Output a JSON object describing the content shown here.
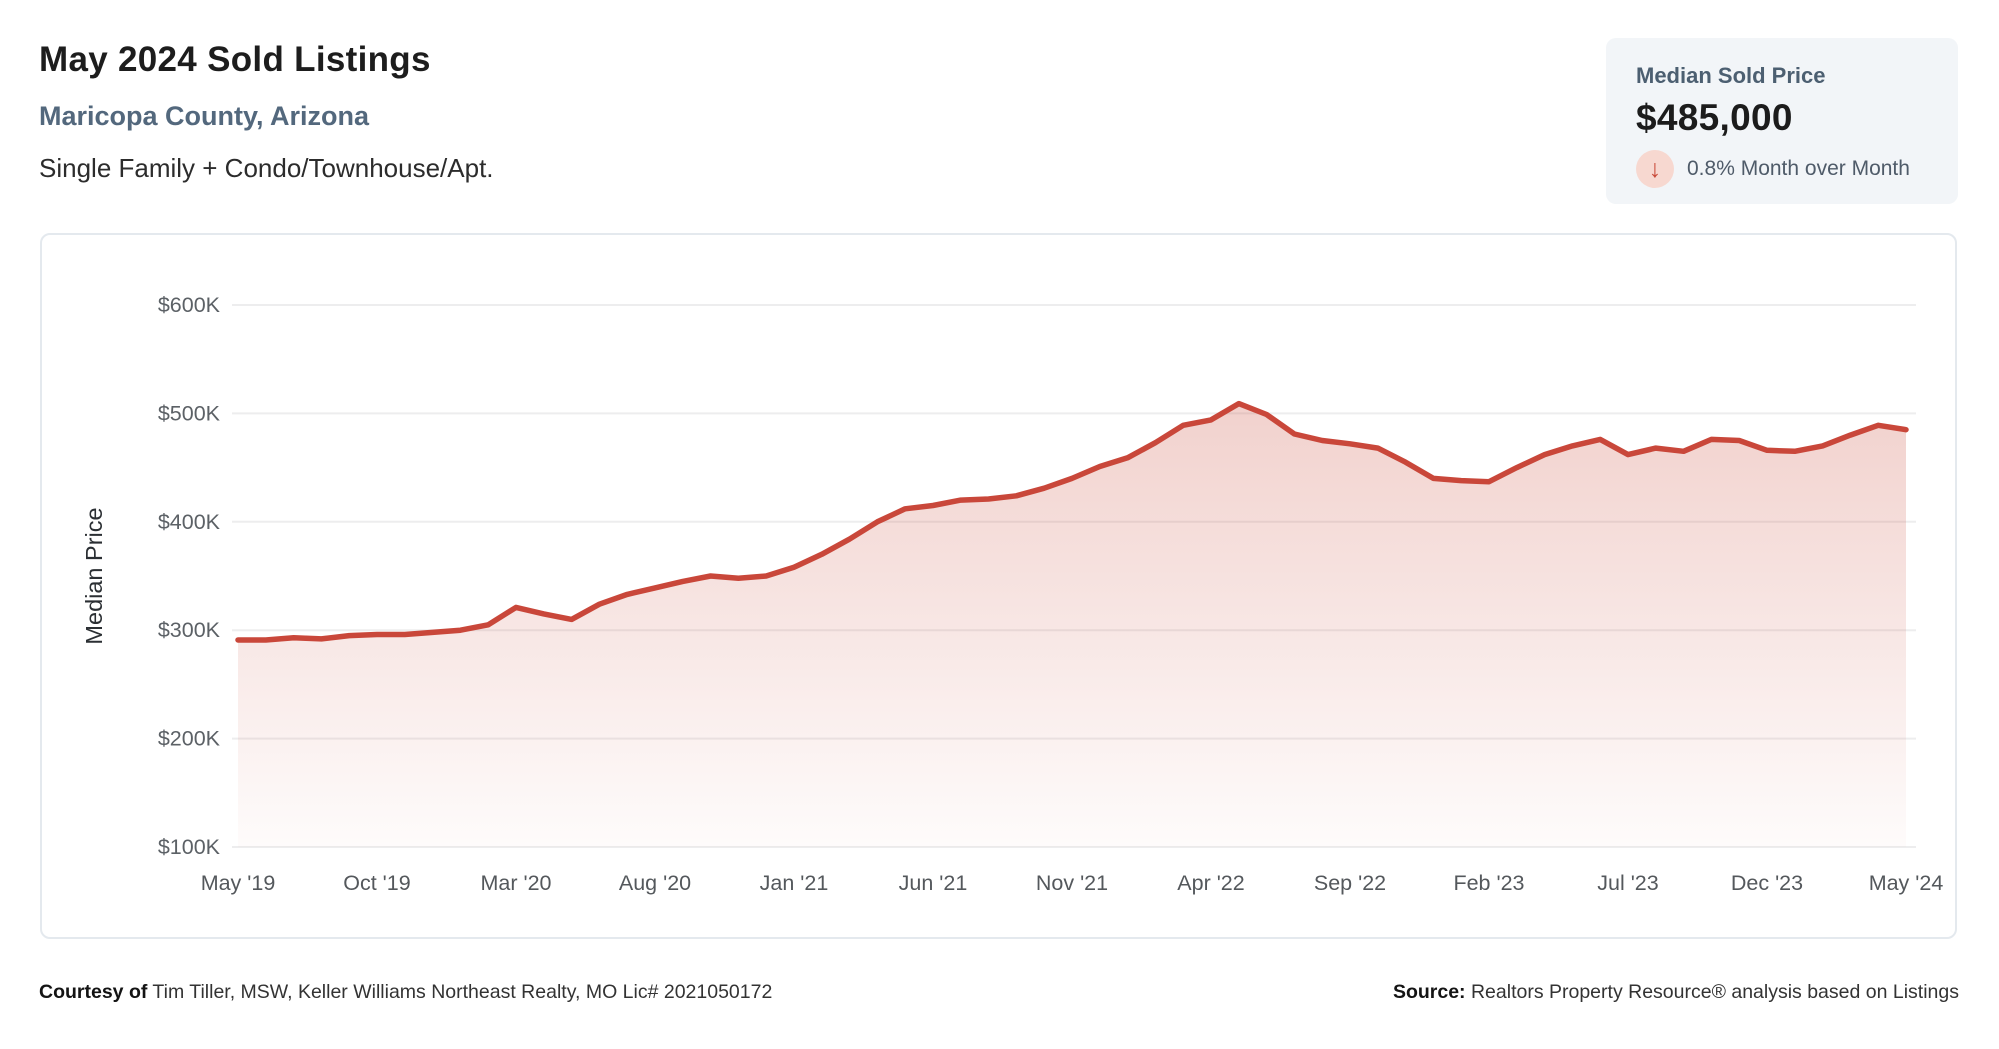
{
  "header": {
    "title": "May 2024 Sold Listings",
    "subtitle": "Maricopa County, Arizona",
    "property_types": "Single Family + Condo/Townhouse/Apt."
  },
  "stat_card": {
    "label": "Median Sold Price",
    "value": "$485,000",
    "change_text": "0.8% Month over Month",
    "change_direction": "down",
    "arrow_glyph": "↓"
  },
  "footer": {
    "courtesy_label": "Courtesy of",
    "courtesy_text": " Tim Tiller, MSW, Keller Williams Northeast Realty, MO Lic# 2021050172",
    "source_label": "Source:",
    "source_text": " Realtors Property Resource® analysis based on Listings"
  },
  "chart_data": {
    "type": "area",
    "title": "May 2024 Sold Listings — Median Sold Price",
    "xlabel": "",
    "ylabel": "Median Price",
    "x_unit": "monthly, May 2019 through May 2024",
    "x_start": "May '19",
    "x_end": "May '24",
    "x_tick_labels": [
      "May '19",
      "Oct '19",
      "Mar '20",
      "Aug '20",
      "Jan '21",
      "Jun '21",
      "Nov '21",
      "Apr '22",
      "Sep '22",
      "Feb '23",
      "Jul '23",
      "Dec '23",
      "May '24"
    ],
    "x_tick_month_index": [
      0,
      5,
      10,
      15,
      20,
      25,
      30,
      35,
      40,
      45,
      50,
      55,
      60
    ],
    "y_tick_labels": [
      "$100K",
      "$200K",
      "$300K",
      "$400K",
      "$500K",
      "$600K"
    ],
    "y_tick_values": [
      100,
      200,
      300,
      400,
      500,
      600
    ],
    "ylim": [
      100,
      600
    ],
    "grid": "horizontal-only",
    "legend": "none",
    "series": [
      {
        "name": "Median Sold Price ($K)",
        "values": [
          291,
          291,
          293,
          292,
          295,
          296,
          296,
          298,
          300,
          305,
          321,
          315,
          310,
          324,
          333,
          339,
          345,
          350,
          348,
          350,
          358,
          370,
          384,
          400,
          412,
          415,
          420,
          421,
          424,
          431,
          440,
          451,
          459,
          473,
          489,
          494,
          509,
          499,
          481,
          475,
          472,
          468,
          455,
          440,
          438,
          437,
          450,
          462,
          470,
          476,
          462,
          468,
          465,
          476,
          475,
          466,
          465,
          470,
          480,
          489,
          485
        ]
      }
    ],
    "colors": {
      "line": "#c9473a",
      "fill_top": "rgba(201,73,56,0.25)",
      "fill_bottom": "rgba(201,73,56,0.02)",
      "grid": "#ededee",
      "x_tick_color": "#54585c",
      "y_tick_color": "#5c6166",
      "axis_title_color": "#2b2f33"
    }
  }
}
